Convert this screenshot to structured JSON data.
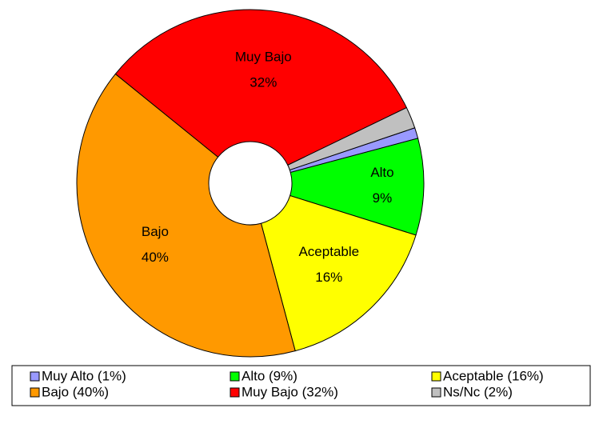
{
  "chart_data": {
    "type": "donut",
    "categories": [
      "Muy Alto",
      "Alto",
      "Aceptable",
      "Bajo",
      "Muy Bajo",
      "Ns/Nc"
    ],
    "values": [
      1,
      9,
      16,
      40,
      32,
      2
    ],
    "value_labels": [
      null,
      "9%",
      "16%",
      "40%",
      "32%",
      null
    ],
    "colors": [
      "#9999ff",
      "#00ff00",
      "#ffff00",
      "#ff9900",
      "#ff0000",
      "#c0c0c0"
    ],
    "legend_labels": [
      "Muy Alto (1%)",
      "Alto (9%)",
      "Aceptable (16%)",
      "Bajo (40%)",
      "Muy Bajo (32%)",
      "Ns/Nc (2%)"
    ],
    "legend": "bottom"
  }
}
